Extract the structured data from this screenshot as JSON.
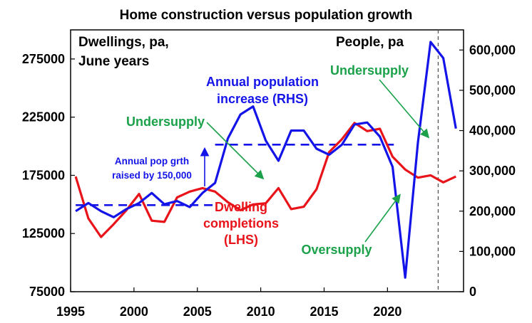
{
  "chart_data": {
    "type": "line",
    "title": "Home construction versus population growth",
    "left_axis_label": [
      "Dwellings, pa,",
      "June years"
    ],
    "right_axis_label": "People, pa",
    "xlim": [
      1995,
      2026
    ],
    "ylim_left": [
      75000,
      300000
    ],
    "ylim_right": [
      0,
      650000
    ],
    "x_ticks": [
      1995,
      2000,
      2005,
      2010,
      2015,
      2020
    ],
    "left_ticks": [
      "75000",
      "125000",
      "175000",
      "225000",
      "275000"
    ],
    "left_tick_values": [
      75000,
      125000,
      175000,
      225000,
      275000
    ],
    "right_ticks": [
      "0",
      "100,000",
      "200,000",
      "300,000",
      "400,000",
      "500,000",
      "600,000"
    ],
    "right_tick_values": [
      0,
      100000,
      200000,
      300000,
      400000,
      500000,
      600000
    ],
    "grid": false,
    "series": [
      {
        "name": "Dwelling completions (LHS)",
        "axis": "left",
        "color": "#e8141a",
        "x": [
          1995.4,
          1996.4,
          1997.4,
          1998.4,
          1999.4,
          2000.4,
          2001.4,
          2002.4,
          2003.4,
          2004.4,
          2005.4,
          2006.4,
          2007.4,
          2008.4,
          2009.4,
          2010.4,
          2011.4,
          2012.4,
          2013.4,
          2014.4,
          2015.4,
          2016.4,
          2017.4,
          2018.4,
          2019.4,
          2020.4,
          2021.4,
          2022.4,
          2023.4,
          2024.4,
          2025.4
        ],
        "values": [
          174000,
          138000,
          122000,
          133000,
          145000,
          159000,
          136000,
          135000,
          156000,
          161000,
          164000,
          161000,
          152000,
          145000,
          150000,
          151000,
          164000,
          146000,
          148000,
          163000,
          195000,
          206000,
          220000,
          213000,
          215000,
          191000,
          180000,
          173000,
          175000,
          169000,
          174000
        ]
      },
      {
        "name": "Annual population increase (RHS)",
        "axis": "right",
        "color": "#1414e8",
        "x": [
          1995.4,
          1996.4,
          1997.4,
          1998.4,
          1999.4,
          2000.4,
          2001.4,
          2002.4,
          2003.4,
          2004.4,
          2005.4,
          2006.4,
          2007.4,
          2008.4,
          2009.4,
          2010.4,
          2011.4,
          2012.4,
          2013.4,
          2014.4,
          2015.4,
          2016.4,
          2017.4,
          2018.4,
          2019.4,
          2020.4,
          2021.4,
          2022.4,
          2023.4,
          2024.4,
          2025.4
        ],
        "values": [
          200000,
          220000,
          200000,
          185000,
          205000,
          220000,
          245000,
          217000,
          225000,
          210000,
          245000,
          270000,
          380000,
          440000,
          460000,
          375000,
          325000,
          400000,
          400000,
          355000,
          340000,
          365000,
          415000,
          420000,
          385000,
          310000,
          35000,
          370000,
          620000,
          580000,
          405000
        ]
      }
    ],
    "reference_lines": [
      {
        "axis": "right",
        "value": 215000,
        "x_start": 1995.4,
        "x_end": 2006.4,
        "style": "dashed",
        "color": "#1414e8"
      },
      {
        "axis": "right",
        "value": 365000,
        "x_start": 2006.4,
        "x_end": 2020.5,
        "style": "dashed",
        "color": "#1414e8"
      },
      {
        "axis": "x",
        "value": 2024.0,
        "style": "dashed",
        "color": "#555555"
      }
    ],
    "annotations": [
      {
        "id": "pop-series-label",
        "lines": [
          "Annual population",
          "increase (RHS)"
        ],
        "color": "#1414e8"
      },
      {
        "id": "dwelling-series-label",
        "lines": [
          "Dwelling",
          "completions",
          "(LHS)"
        ],
        "color": "#e8141a"
      },
      {
        "id": "undersupply-left",
        "lines": [
          "Undersupply"
        ],
        "color": "#1aa14a"
      },
      {
        "id": "undersupply-right",
        "lines": [
          "Undersupply"
        ],
        "color": "#1aa14a"
      },
      {
        "id": "oversupply",
        "lines": [
          "Oversupply"
        ],
        "color": "#1aa14a"
      },
      {
        "id": "pop-growth-note",
        "lines": [
          "Annual pop grth",
          "raised by 150,000"
        ],
        "color": "#1414e8"
      }
    ]
  }
}
